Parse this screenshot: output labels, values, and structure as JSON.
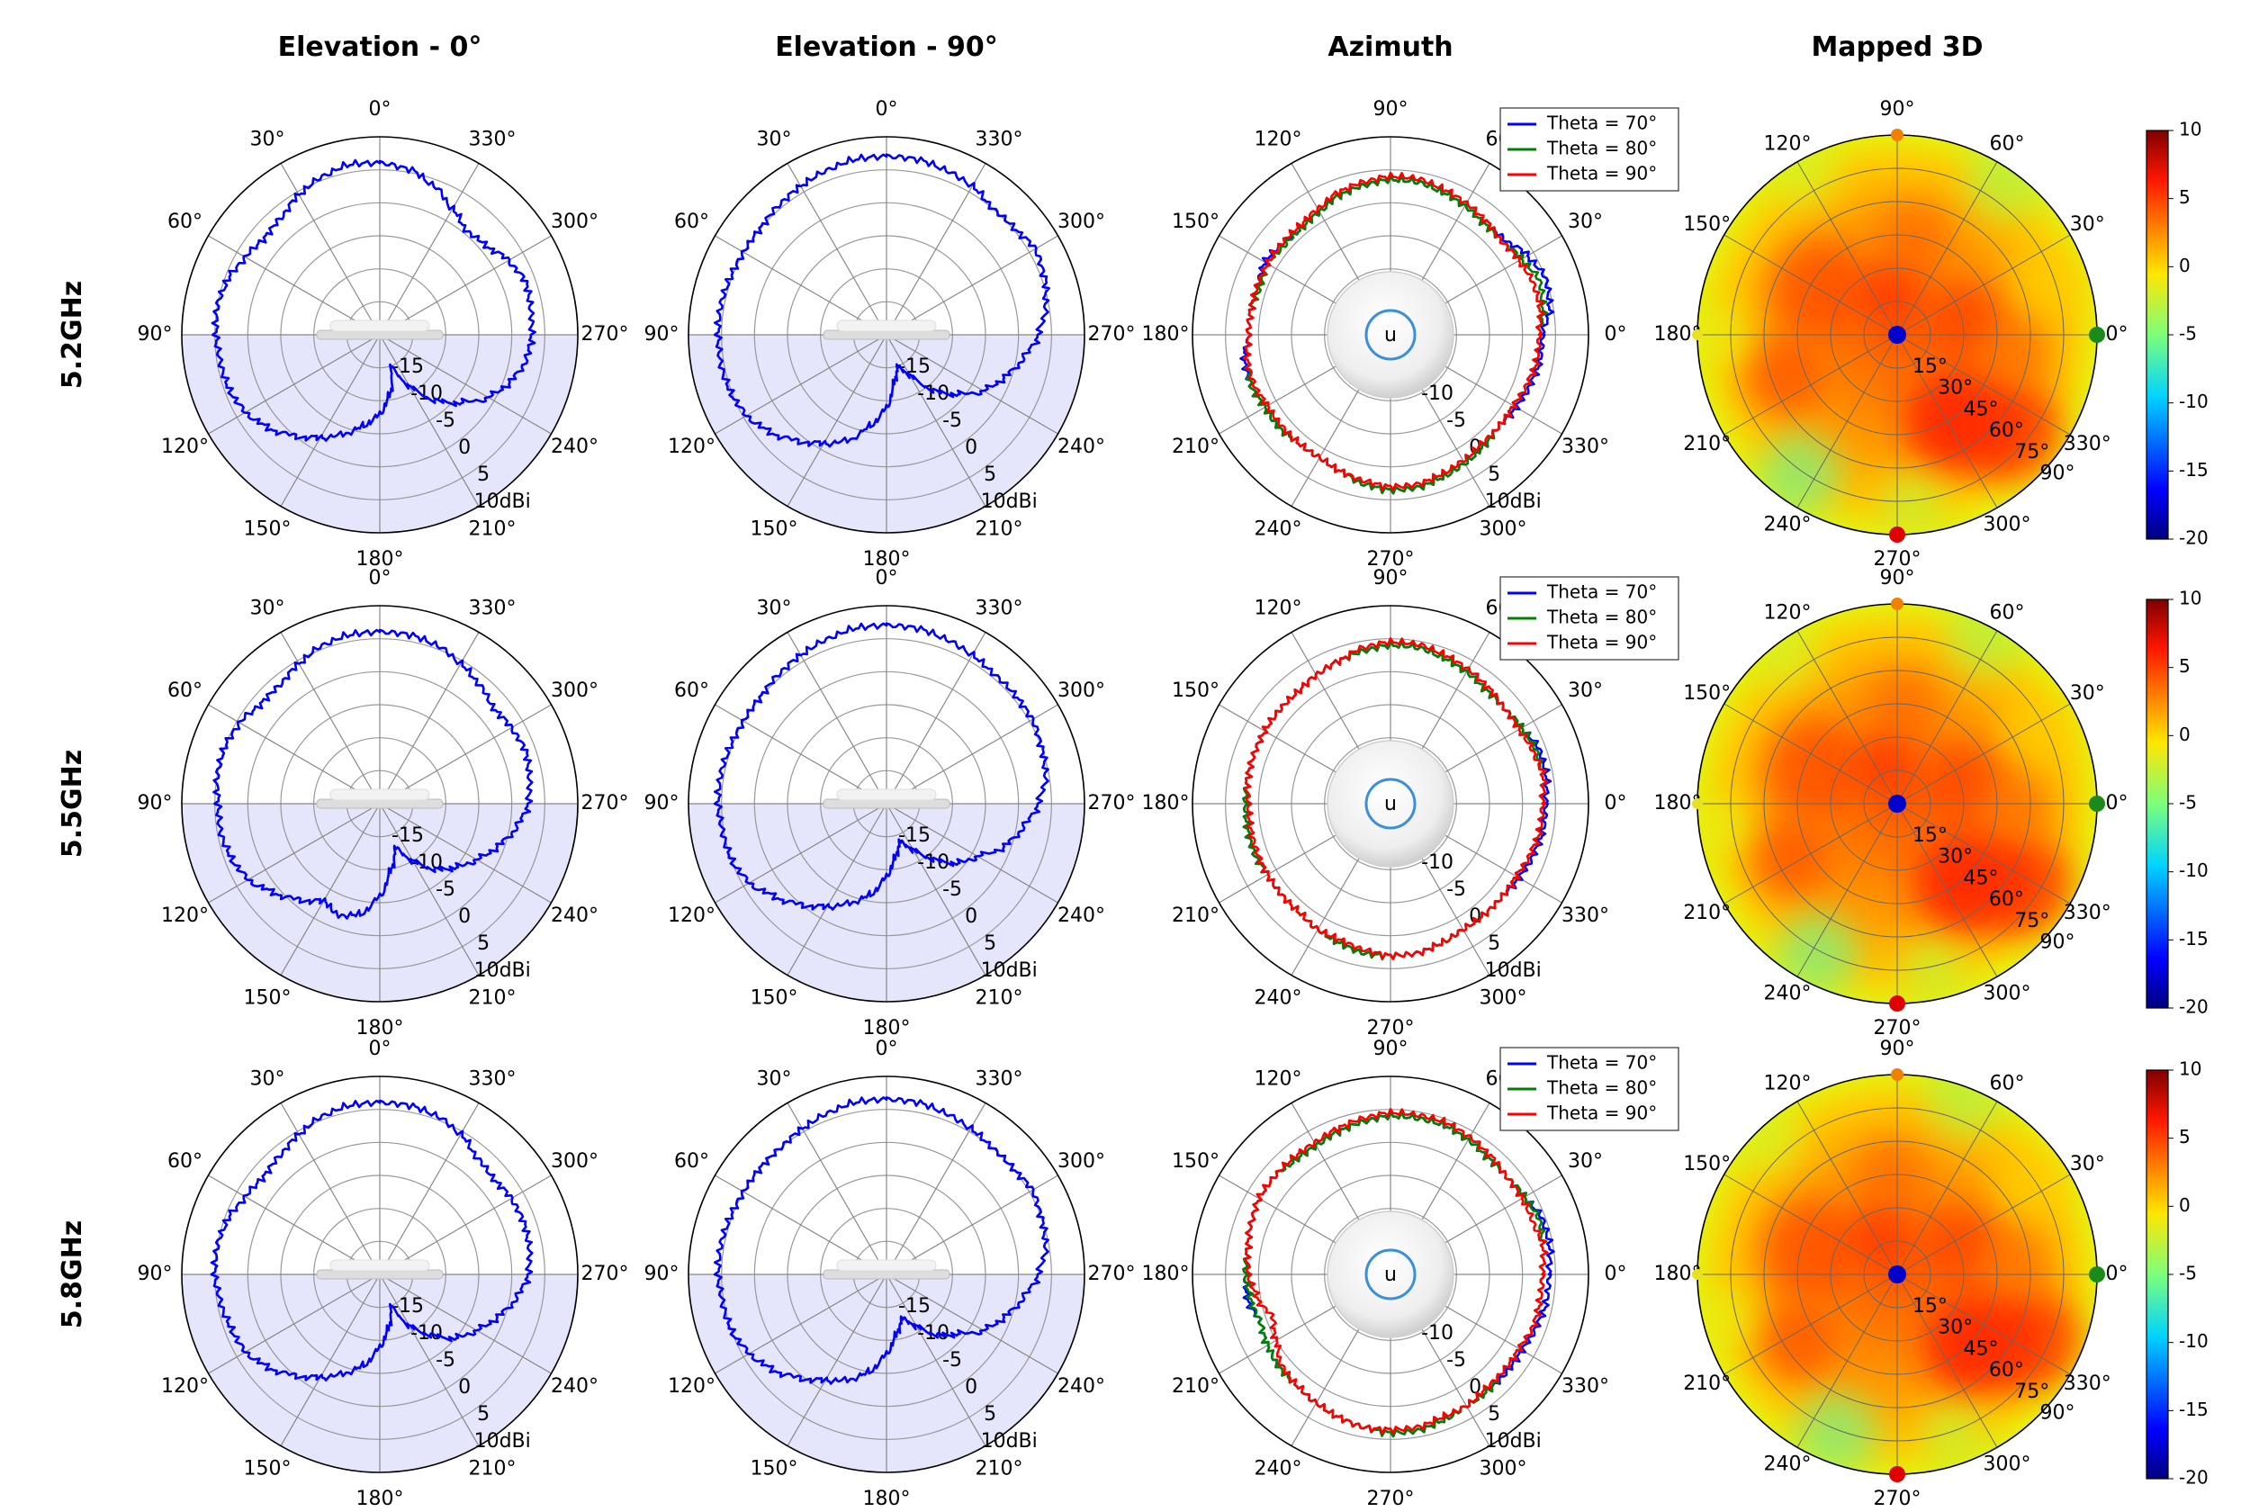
{
  "figure": {
    "column_titles": [
      "Elevation - 0°",
      "Elevation - 90°",
      "Azimuth",
      "Mapped 3D"
    ],
    "row_labels": [
      "5.2GHz",
      "5.5GHz",
      "5.8GHz"
    ]
  },
  "chart_data": {
    "type": "polar",
    "elevation_angle_ticks": [
      "0°",
      "330°",
      "300°",
      "270°",
      "240°",
      "210°",
      "180°",
      "150°",
      "120°",
      "90°",
      "60°",
      "30°"
    ],
    "azimuth_angle_ticks": [
      "0°",
      "30°",
      "60°",
      "90°",
      "120°",
      "150°",
      "180°",
      "210°",
      "240°",
      "270°",
      "300°",
      "330°"
    ],
    "radial_ticks": [
      "-15",
      "-10",
      "-5",
      "0",
      "5",
      "10dBi"
    ],
    "rlim_dBi": [
      -20,
      10
    ],
    "shaded_region": "90° to 270° (lower half)",
    "legend": [
      "Theta = 70°",
      "Theta = 80°",
      "Theta = 90°"
    ],
    "legend_placement": "top-right",
    "series_colors": {
      "theta70": "#0000ff",
      "theta80": "#008000",
      "theta90": "#ff0000",
      "elevation": "#0000ff"
    },
    "mapped3d": {
      "angle_ticks": [
        "90°",
        "60°",
        "30°",
        "0°",
        "330°",
        "300°",
        "270°",
        "240°",
        "210°",
        "180°",
        "150°",
        "120°"
      ],
      "theta_ticks": [
        "15°",
        "30°",
        "45°",
        "60°",
        "75°",
        "90°"
      ],
      "colorbar": {
        "min": -20,
        "max": 10,
        "ticks": [
          "10",
          "5",
          "0",
          "-5",
          "-10",
          "-15",
          "-20"
        ],
        "colormap": "jet"
      }
    },
    "rows": [
      {
        "label": "5.2GHz",
        "elevation_0_dBi": [
          6,
          6.2,
          5.5,
          4.5,
          3.2,
          2.8,
          3.5,
          4.5,
          5,
          4.8,
          4.5,
          4.3,
          3.5,
          2,
          0,
          -2,
          -4,
          -6,
          -8,
          -11,
          -15,
          -11,
          -7,
          -4,
          -1,
          1,
          2.5,
          3,
          3.2,
          3.5,
          2.5,
          1,
          0.5,
          2,
          4,
          5.5
        ],
        "elevation_90_dBi": [
          7,
          7,
          6.5,
          6,
          5.5,
          5,
          5,
          5.2,
          5.5,
          5.5,
          5.5,
          5.2,
          4.5,
          3,
          1,
          -1,
          -3,
          -6,
          -9,
          -13,
          -15,
          -13,
          -9,
          -6,
          -3,
          -1,
          1,
          3,
          4.5,
          5.5,
          6,
          5.2,
          5,
          6,
          6.5,
          7
        ],
        "azimuth_theta70_dBi": [
          3,
          4.5,
          5,
          4,
          2.5,
          2,
          2.5,
          3,
          3.5,
          3.5,
          3,
          2.5,
          1.5,
          1,
          1.5,
          2,
          1.5,
          1.5,
          1.5,
          2.5,
          2.5,
          2,
          2,
          1.5,
          1.5,
          2,
          3,
          3.5,
          3.5,
          3,
          2.5,
          2,
          1.5,
          2,
          2.5,
          3
        ],
        "azimuth_theta80_dBi": [
          2.5,
          3.5,
          4,
          3,
          2,
          2,
          2.5,
          3,
          3.5,
          3.5,
          3,
          2.5,
          1.5,
          1,
          1,
          1.5,
          1,
          1.5,
          1.5,
          2,
          2.5,
          2,
          2,
          1.5,
          1.5,
          2,
          3,
          3.5,
          3.5,
          3,
          2.5,
          2,
          1.5,
          1.5,
          2,
          2.5
        ],
        "azimuth_theta90_dBi": [
          2.5,
          3,
          3,
          2.5,
          2,
          2.5,
          3,
          3.5,
          4,
          4,
          3.5,
          3,
          2,
          1.5,
          1.5,
          1.5,
          1.5,
          1.5,
          1.5,
          2,
          2,
          1.5,
          1.5,
          1.5,
          1.5,
          2,
          2.5,
          3,
          3,
          2.5,
          2,
          1.5,
          1.5,
          1.5,
          2,
          2.5
        ]
      },
      {
        "label": "5.5GHz",
        "elevation_0_dBi": [
          6,
          6,
          5.5,
          4.5,
          3.5,
          3.5,
          4.5,
          5,
          5,
          4.5,
          4.5,
          4,
          3,
          1,
          -1,
          -3,
          -2,
          -3,
          -6,
          -10,
          -13,
          -10,
          -7,
          -5,
          -3,
          -1,
          1,
          2.5,
          3,
          3.5,
          3,
          2.5,
          3.5,
          4.5,
          5.5,
          6
        ],
        "elevation_90_dBi": [
          7,
          7,
          6.5,
          6,
          5.5,
          5,
          5,
          5.2,
          5.5,
          5.5,
          5.2,
          5,
          4,
          2,
          0,
          -2,
          -4,
          -6,
          -9,
          -12,
          -14,
          -12,
          -9,
          -6,
          -4,
          -1,
          1,
          3,
          4.5,
          5,
          5.5,
          5.5,
          5.5,
          6,
          6.5,
          7
        ],
        "azimuth_theta70_dBi": [
          3.5,
          4,
          4,
          3,
          2.5,
          2.5,
          3,
          3.5,
          4,
          4,
          3.5,
          3,
          2.5,
          2,
          2,
          2,
          2,
          2,
          2,
          2,
          2,
          1.5,
          1.5,
          1.5,
          2,
          2.5,
          3,
          3,
          3,
          2.5,
          2,
          2,
          2,
          2.5,
          3,
          3.5
        ],
        "azimuth_theta80_dBi": [
          3,
          3.5,
          3.5,
          3,
          2.5,
          2.5,
          3,
          3.5,
          4,
          4,
          3.5,
          3,
          2.5,
          2,
          2,
          2,
          2,
          2,
          2,
          2,
          2,
          1.5,
          1.5,
          1.5,
          2,
          2.5,
          3,
          3,
          3,
          2.5,
          2,
          2,
          2,
          2,
          2.5,
          3
        ],
        "azimuth_theta90_dBi": [
          3,
          3.5,
          3,
          2.5,
          2.5,
          3,
          3.5,
          4,
          4.5,
          4.5,
          4,
          3,
          2.5,
          2,
          2,
          2,
          2,
          2,
          1.5,
          1.5,
          1.5,
          1.5,
          1.5,
          1.5,
          2,
          2,
          2.5,
          3,
          3,
          2.5,
          2,
          2,
          2,
          2,
          2.5,
          3
        ]
      },
      {
        "label": "5.8GHz",
        "elevation_0_dBi": [
          6,
          6,
          5.5,
          4.5,
          3.5,
          3,
          3.5,
          4.5,
          5,
          5,
          4.5,
          4,
          3.5,
          2,
          0,
          -2,
          -4,
          -6,
          -9,
          -12,
          -15,
          -11,
          -8,
          -5,
          -3,
          -1,
          1,
          2.5,
          3,
          3.2,
          3,
          2.5,
          3,
          4.5,
          5.5,
          6
        ],
        "elevation_90_dBi": [
          6.5,
          6.5,
          6,
          5.5,
          5,
          5,
          5,
          5.2,
          5.5,
          5.5,
          5.2,
          5,
          4,
          2.5,
          0.5,
          -1.5,
          -3,
          -5,
          -8,
          -11,
          -13,
          -11,
          -8,
          -6,
          -3,
          -1,
          1,
          3,
          4.5,
          5,
          5.5,
          5,
          5,
          5.5,
          6,
          6.5
        ],
        "azimuth_theta70_dBi": [
          4,
          4.5,
          4.5,
          3.5,
          3,
          3,
          3.5,
          4,
          4,
          4,
          3.5,
          3,
          2.5,
          2.5,
          3,
          3,
          2.5,
          2,
          2,
          2,
          1,
          1.5,
          2,
          2,
          2.5,
          3,
          3.5,
          4,
          4,
          3.5,
          3,
          3,
          3,
          3,
          3.5,
          4
        ],
        "azimuth_theta80_dBi": [
          3,
          3.5,
          4,
          3.5,
          3,
          3,
          3.5,
          4,
          4,
          4,
          3.5,
          3,
          2.5,
          2.5,
          3,
          3,
          2.5,
          2,
          2,
          1.5,
          1,
          1.5,
          2,
          2,
          2.5,
          3,
          3.5,
          4,
          4,
          3.5,
          3,
          3,
          2.5,
          2.5,
          3,
          3
        ],
        "azimuth_theta90_dBi": [
          3,
          3.5,
          3,
          3,
          3,
          3.5,
          4,
          4.5,
          4.5,
          4.5,
          4,
          3.5,
          3,
          3,
          3,
          3,
          2.5,
          2,
          1.5,
          0.5,
          -1,
          0,
          1.5,
          2,
          2.5,
          3,
          3.5,
          3.5,
          3.5,
          3,
          3,
          2.5,
          2.5,
          2.5,
          3,
          3
        ]
      }
    ]
  }
}
